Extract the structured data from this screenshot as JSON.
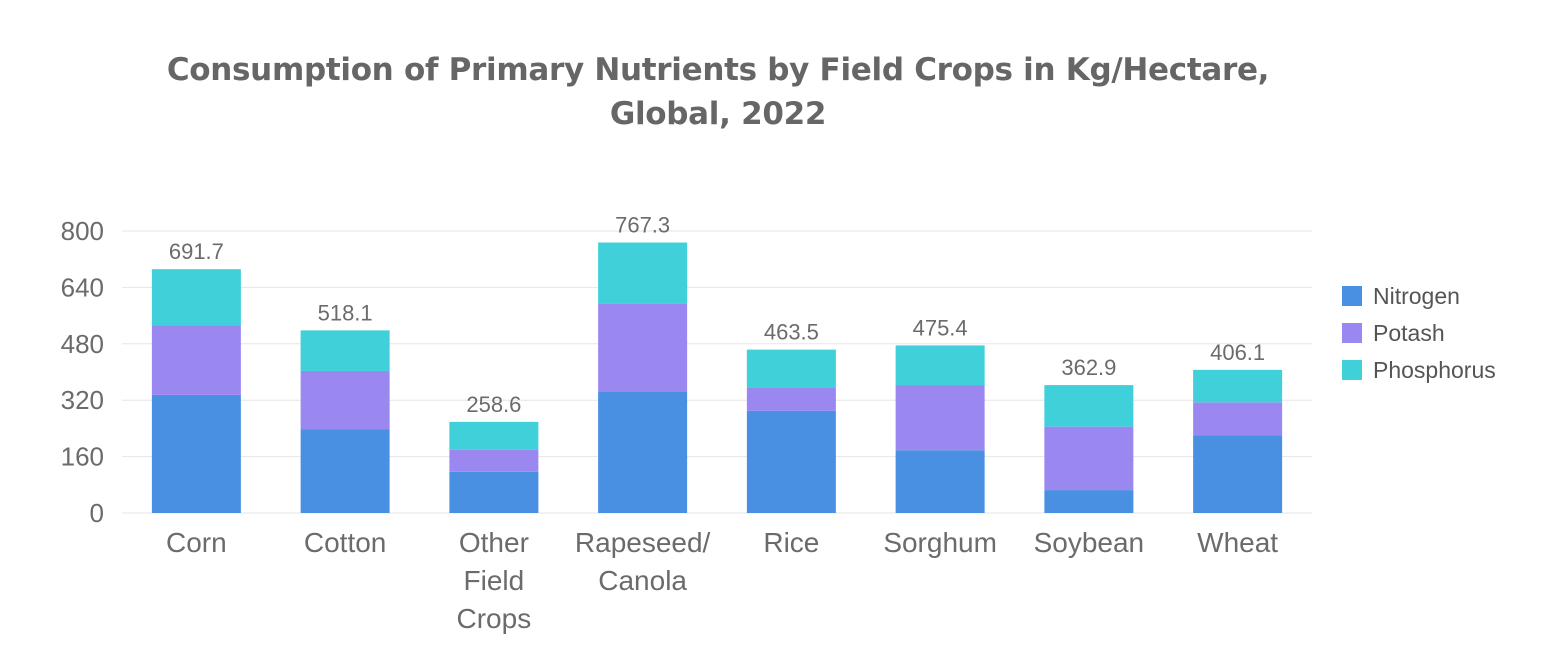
{
  "chart_data": {
    "type": "bar",
    "stacked": true,
    "title": "Consumption of Primary Nutrients by Field Crops in Kg/Hectare, Global, 2022",
    "title_lines": [
      "Consumption of Primary Nutrients by Field Crops in Kg/Hectare,",
      "Global, 2022"
    ],
    "categories": [
      "Corn",
      "Cotton",
      "Other Field Crops",
      "Rapeseed/ Canola",
      "Rice",
      "Sorghum",
      "Soybean",
      "Wheat"
    ],
    "category_lines": [
      [
        "Corn"
      ],
      [
        "Cotton"
      ],
      [
        "Other",
        "Field",
        "Crops"
      ],
      [
        "Rapeseed/",
        "Canola"
      ],
      [
        "Rice"
      ],
      [
        "Sorghum"
      ],
      [
        "Soybean"
      ],
      [
        "Wheat"
      ]
    ],
    "series": [
      {
        "name": "Nitrogen",
        "color": "#4a90e2",
        "values": [
          335,
          238,
          117,
          345,
          290,
          178,
          65,
          220
        ]
      },
      {
        "name": "Potash",
        "color": "#9b87f0",
        "values": [
          198,
          165,
          62,
          248,
          67,
          185,
          180,
          94
        ]
      },
      {
        "name": "Phosphorus",
        "color": "#3fd0d9",
        "values": [
          158.7,
          115.1,
          79.6,
          174.3,
          106.5,
          112.4,
          117.9,
          92.1
        ]
      }
    ],
    "totals": [
      "691.7",
      "518.1",
      "258.6",
      "767.3",
      "463.5",
      "475.4",
      "362.9",
      "406.1"
    ],
    "xlabel": "",
    "ylabel": "",
    "ylim": [
      0,
      800
    ],
    "yticks": [
      "0",
      "160",
      "320",
      "480",
      "640",
      "800"
    ],
    "grid": true,
    "legend_position": "right"
  }
}
